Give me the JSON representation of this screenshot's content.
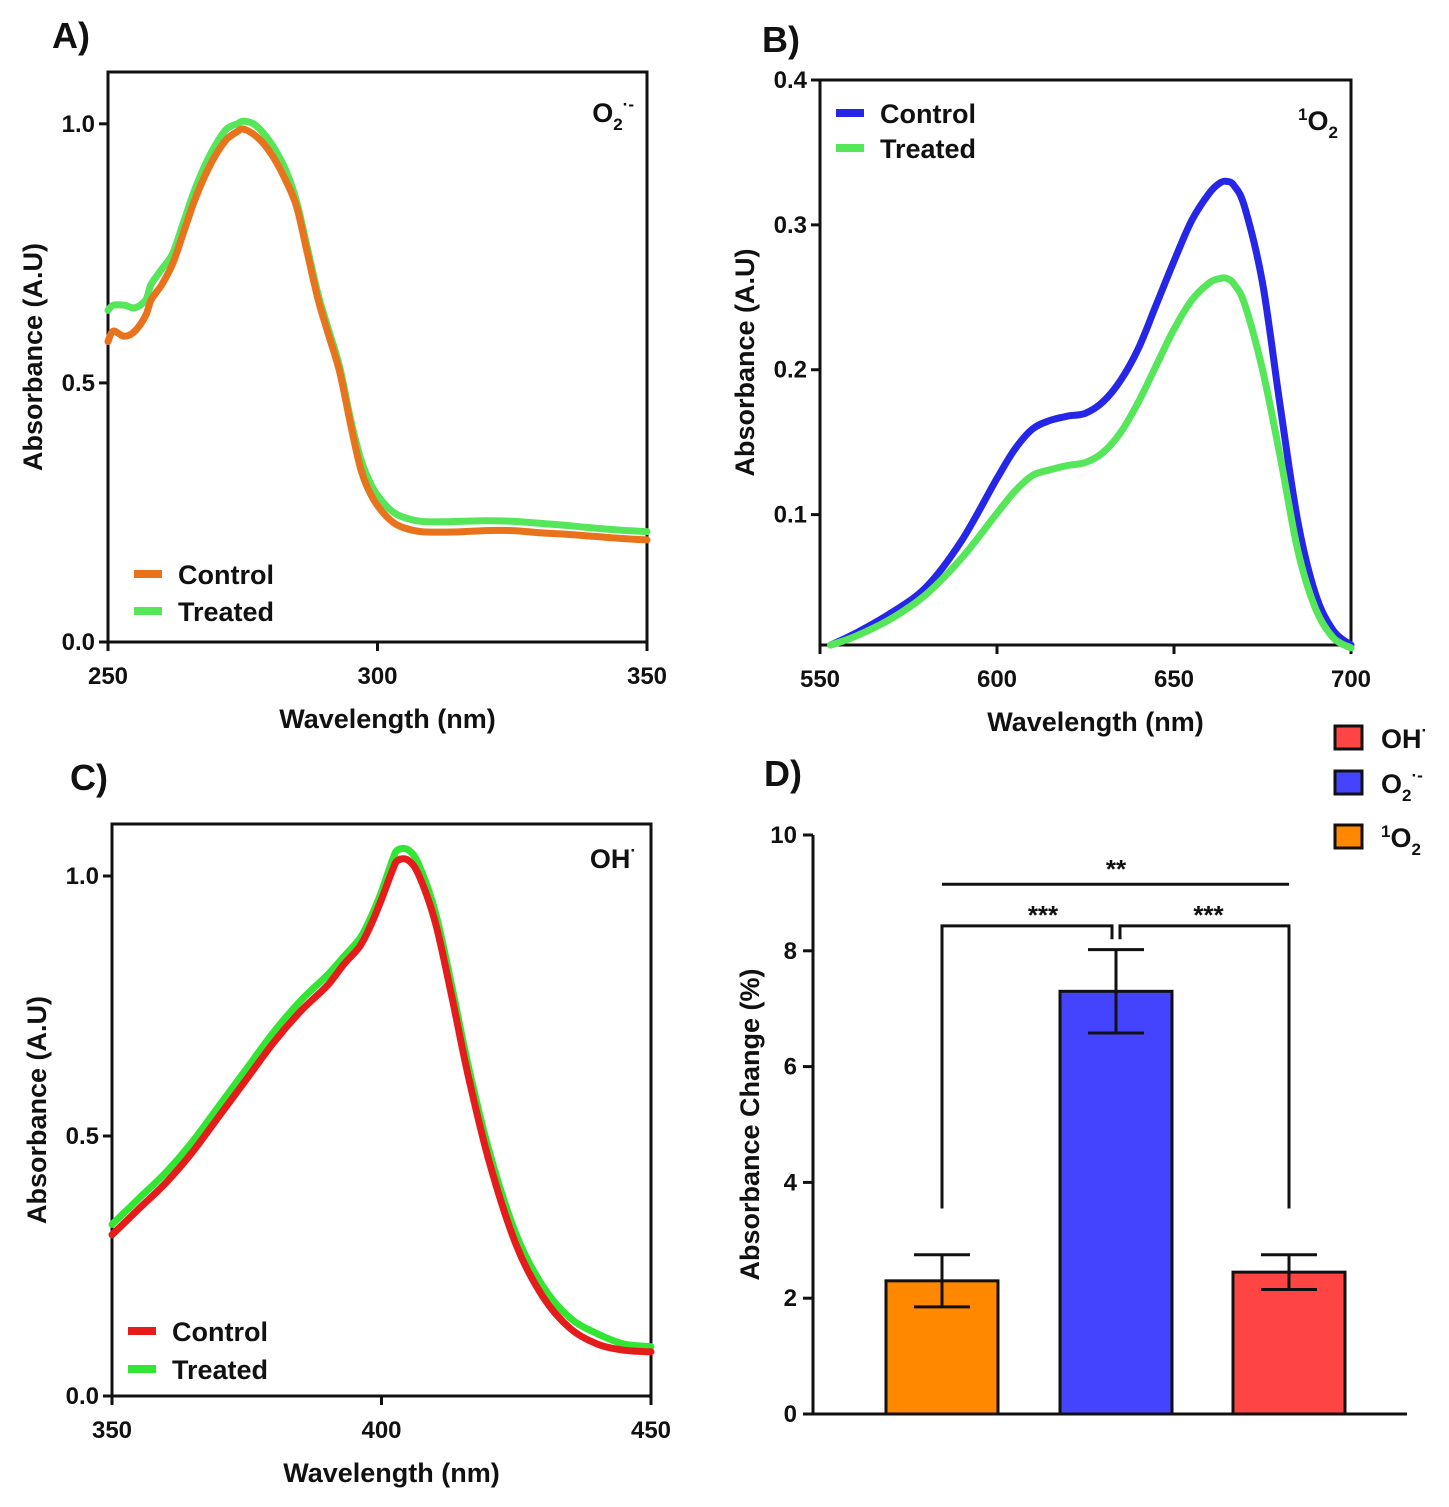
{
  "chart_data": [
    {
      "id": "A",
      "type": "line",
      "panel_label": "A)",
      "species": {
        "base": "O",
        "sub": "2",
        "sup": "·-"
      },
      "xlabel": "Wavelength (nm)",
      "ylabel": "Absorbance  (A.U)",
      "xlim": [
        250,
        350
      ],
      "ylim": [
        0,
        1.1
      ],
      "xticks": [
        250,
        300,
        350
      ],
      "xtick_labels": [
        "250",
        "300",
        "350"
      ],
      "yticks": [
        0,
        0.5,
        1.0
      ],
      "ytick_labels": [
        "0.0",
        "0.5",
        "1.0"
      ],
      "grid": false,
      "legend": "bottom-left",
      "series": [
        {
          "name": "Treated",
          "color": "#55e65a",
          "x": [
            250,
            251,
            253,
            255,
            257,
            258,
            260,
            262,
            264,
            266,
            268,
            270,
            272,
            274,
            275,
            277,
            279,
            281,
            283,
            285,
            287,
            289,
            291,
            293,
            295,
            297,
            299,
            301,
            303,
            305,
            308,
            312,
            316,
            320,
            325,
            330,
            335,
            340,
            345,
            350
          ],
          "y": [
            0.64,
            0.65,
            0.65,
            0.645,
            0.66,
            0.69,
            0.72,
            0.75,
            0.81,
            0.87,
            0.92,
            0.96,
            0.99,
            1.0,
            1.005,
            1.0,
            0.98,
            0.95,
            0.91,
            0.85,
            0.76,
            0.67,
            0.6,
            0.53,
            0.43,
            0.35,
            0.3,
            0.27,
            0.25,
            0.24,
            0.233,
            0.232,
            0.233,
            0.234,
            0.233,
            0.229,
            0.225,
            0.22,
            0.216,
            0.213
          ]
        },
        {
          "name": "Control",
          "color": "#e8731c",
          "x": [
            250,
            251,
            253,
            255,
            257,
            258,
            260,
            262,
            264,
            266,
            268,
            270,
            272,
            274,
            275,
            277,
            279,
            281,
            283,
            285,
            287,
            289,
            291,
            293,
            295,
            297,
            299,
            301,
            303,
            305,
            308,
            312,
            316,
            320,
            325,
            330,
            335,
            340,
            345,
            350
          ],
          "y": [
            0.58,
            0.6,
            0.59,
            0.6,
            0.63,
            0.66,
            0.69,
            0.73,
            0.79,
            0.85,
            0.9,
            0.94,
            0.97,
            0.985,
            0.99,
            0.98,
            0.96,
            0.93,
            0.89,
            0.84,
            0.75,
            0.66,
            0.59,
            0.52,
            0.42,
            0.33,
            0.28,
            0.25,
            0.23,
            0.22,
            0.213,
            0.212,
            0.213,
            0.215,
            0.215,
            0.211,
            0.208,
            0.204,
            0.2,
            0.197
          ]
        }
      ]
    },
    {
      "id": "B",
      "type": "line",
      "panel_label": "B)",
      "species": {
        "base": "O",
        "sub": "2",
        "sup": "1",
        "sup_before": true
      },
      "xlabel": "Wavelength (nm)",
      "ylabel": "Absorbance  (A.U)",
      "xlim": [
        550,
        700
      ],
      "ylim": [
        0.01,
        0.4
      ],
      "xticks": [
        550,
        600,
        650,
        700
      ],
      "xtick_labels": [
        "550",
        "600",
        "650",
        "700"
      ],
      "yticks": [
        0.1,
        0.2,
        0.3,
        0.4
      ],
      "ytick_labels": [
        "0.1",
        "0.2",
        "0.3",
        "0.4"
      ],
      "grid": false,
      "legend": "top-left",
      "series": [
        {
          "name": "Control",
          "color": "#2626e6",
          "x": [
            553,
            560,
            570,
            580,
            590,
            600,
            605,
            610,
            615,
            620,
            625,
            630,
            635,
            640,
            645,
            650,
            655,
            660,
            663,
            665,
            667,
            670,
            675,
            680,
            685,
            690,
            695,
            700
          ],
          "y": [
            0.01,
            0.018,
            0.032,
            0.05,
            0.082,
            0.125,
            0.145,
            0.159,
            0.165,
            0.168,
            0.17,
            0.178,
            0.193,
            0.215,
            0.245,
            0.275,
            0.303,
            0.322,
            0.329,
            0.33,
            0.327,
            0.312,
            0.26,
            0.175,
            0.095,
            0.045,
            0.02,
            0.01
          ]
        },
        {
          "name": "Treated",
          "color": "#55e65a",
          "x": [
            553,
            560,
            570,
            580,
            590,
            600,
            605,
            610,
            615,
            620,
            625,
            630,
            635,
            640,
            645,
            650,
            655,
            660,
            663,
            665,
            667,
            670,
            675,
            680,
            685,
            690,
            695,
            700
          ],
          "y": [
            0.01,
            0.016,
            0.028,
            0.045,
            0.07,
            0.101,
            0.116,
            0.127,
            0.131,
            0.134,
            0.136,
            0.143,
            0.157,
            0.178,
            0.203,
            0.228,
            0.248,
            0.26,
            0.263,
            0.263,
            0.259,
            0.245,
            0.2,
            0.14,
            0.075,
            0.035,
            0.015,
            0.008
          ]
        }
      ]
    },
    {
      "id": "C",
      "type": "line",
      "panel_label": "C)",
      "species": {
        "base": "OH",
        "sup": "·"
      },
      "xlabel": "Wavelength (nm)",
      "ylabel": "Absorbance  (A.U)",
      "xlim": [
        350,
        450
      ],
      "ylim": [
        0,
        1.1
      ],
      "xticks": [
        350,
        400,
        450
      ],
      "xtick_labels": [
        "350",
        "400",
        "450"
      ],
      "yticks": [
        0,
        0.5,
        1.0
      ],
      "ytick_labels": [
        "0.0",
        "0.5",
        "1.0"
      ],
      "grid": false,
      "legend": "bottom-left",
      "series": [
        {
          "name": "Treated",
          "color": "#33e633",
          "x": [
            350,
            355,
            360,
            365,
            370,
            375,
            380,
            385,
            390,
            393,
            396,
            398,
            400,
            402,
            403,
            405,
            407,
            410,
            413,
            416,
            420,
            425,
            430,
            435,
            440,
            445,
            450
          ],
          "y": [
            0.33,
            0.38,
            0.43,
            0.49,
            0.56,
            0.63,
            0.7,
            0.76,
            0.81,
            0.845,
            0.88,
            0.92,
            0.97,
            1.03,
            1.05,
            1.05,
            1.02,
            0.93,
            0.79,
            0.64,
            0.47,
            0.31,
            0.21,
            0.15,
            0.12,
            0.1,
            0.095
          ]
        },
        {
          "name": "Control",
          "color": "#e61c1c",
          "x": [
            350,
            355,
            360,
            365,
            370,
            375,
            380,
            385,
            390,
            393,
            396,
            398,
            400,
            402,
            403,
            405,
            407,
            410,
            413,
            416,
            420,
            425,
            430,
            435,
            440,
            445,
            450
          ],
          "y": [
            0.31,
            0.36,
            0.41,
            0.47,
            0.54,
            0.61,
            0.68,
            0.74,
            0.79,
            0.83,
            0.865,
            0.905,
            0.955,
            1.01,
            1.03,
            1.03,
            1.0,
            0.91,
            0.77,
            0.62,
            0.45,
            0.29,
            0.19,
            0.13,
            0.1,
            0.088,
            0.085
          ]
        }
      ]
    },
    {
      "id": "D",
      "type": "bar",
      "panel_label": "D)",
      "ylabel": "Absorbance Change (%)",
      "ylim": [
        0,
        10
      ],
      "yticks": [
        0,
        2,
        4,
        6,
        8,
        10
      ],
      "ytick_labels": [
        "0",
        "2",
        "4",
        "6",
        "8",
        "10"
      ],
      "grid": false,
      "legend": "top-right",
      "categories": [
        "¹O₂",
        "O₂·⁻",
        "OH·"
      ],
      "values": [
        2.3,
        7.3,
        2.45
      ],
      "errors": [
        0.45,
        0.72,
        0.3
      ],
      "colors": [
        "#ff8800",
        "#4444ff",
        "#ff4444"
      ],
      "legend_items": [
        {
          "base": "OH",
          "sup": "·",
          "color": "#ff4444"
        },
        {
          "base": "O",
          "sub": "2",
          "sup": "·-",
          "color": "#4444ff"
        },
        {
          "base": "O",
          "sub": "2",
          "sup": "1",
          "sup_before": true,
          "color": "#ff8800"
        }
      ],
      "significance": [
        {
          "between": [
            0,
            1
          ],
          "label": "***"
        },
        {
          "between": [
            1,
            2
          ],
          "label": "***"
        },
        {
          "between": [
            0,
            2
          ],
          "label": "**"
        }
      ]
    }
  ]
}
